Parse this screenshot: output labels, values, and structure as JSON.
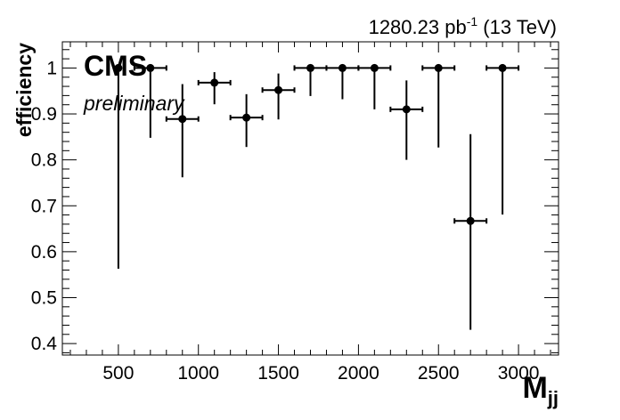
{
  "header": {
    "lumi_value": "1280.23 pb",
    "lumi_exp": "-1",
    "energy": " (13 TeV)"
  },
  "labels": {
    "experiment": "CMS",
    "status": "preliminary"
  },
  "chart_data": {
    "type": "scatter",
    "xlabel_main": "M",
    "xlabel_sub": "jj",
    "ylabel": "efficiency",
    "xlim": [
      150,
      3250
    ],
    "ylim": [
      0.375,
      1.057
    ],
    "x_ticks": [
      500,
      1000,
      1500,
      2000,
      2500,
      3000
    ],
    "y_ticks": [
      0.4,
      0.5,
      0.6,
      0.7,
      0.8,
      0.9,
      1
    ],
    "series": [
      {
        "points": [
          {
            "x": 500,
            "xerr": 0,
            "y": 1.0,
            "y_low": 0.563,
            "y_high": 1.0
          },
          {
            "x": 700,
            "xerr": 100,
            "y": 1.0,
            "y_low": 0.848,
            "y_high": 1.0
          },
          {
            "x": 900,
            "xerr": 100,
            "y": 0.889,
            "y_low": 0.762,
            "y_high": 0.965
          },
          {
            "x": 1100,
            "xerr": 100,
            "y": 0.968,
            "y_low": 0.921,
            "y_high": 0.991
          },
          {
            "x": 1300,
            "xerr": 100,
            "y": 0.892,
            "y_low": 0.828,
            "y_high": 0.943
          },
          {
            "x": 1500,
            "xerr": 100,
            "y": 0.952,
            "y_low": 0.888,
            "y_high": 0.988
          },
          {
            "x": 1700,
            "xerr": 100,
            "y": 1.0,
            "y_low": 0.939,
            "y_high": 1.0
          },
          {
            "x": 1900,
            "xerr": 100,
            "y": 1.0,
            "y_low": 0.932,
            "y_high": 1.0
          },
          {
            "x": 2100,
            "xerr": 100,
            "y": 1.0,
            "y_low": 0.91,
            "y_high": 1.0
          },
          {
            "x": 2300,
            "xerr": 100,
            "y": 0.91,
            "y_low": 0.8,
            "y_high": 0.973
          },
          {
            "x": 2500,
            "xerr": 100,
            "y": 1.0,
            "y_low": 0.827,
            "y_high": 1.0
          },
          {
            "x": 2700,
            "xerr": 100,
            "y": 0.667,
            "y_low": 0.43,
            "y_high": 0.856
          },
          {
            "x": 2900,
            "xerr": 100,
            "y": 1.0,
            "y_low": 0.681,
            "y_high": 1.0
          }
        ]
      }
    ],
    "grid": false
  }
}
